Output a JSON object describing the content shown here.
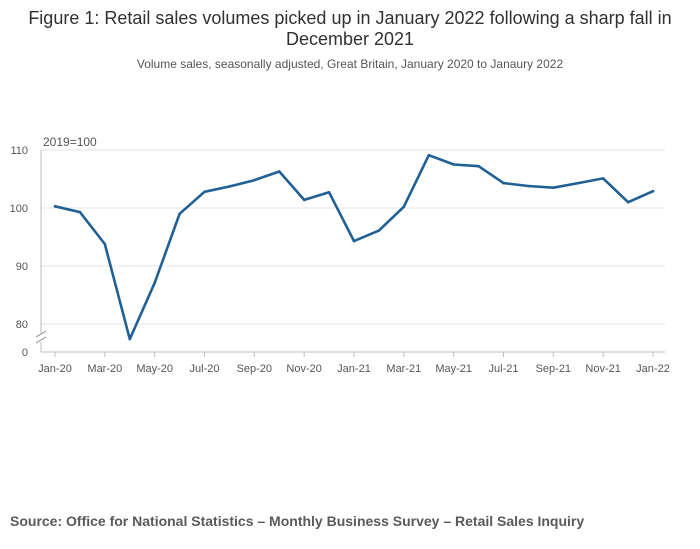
{
  "title": "Figure 1: Retail sales volumes picked up in January 2022 following a sharp fall in December 2021",
  "subtitle": "Volume sales, seasonally adjusted, Great Britain, January 2020 to Janaury 2022",
  "source": "Source: Office for National Statistics – Monthly Business Survey – Retail Sales Inquiry",
  "chart_data": {
    "type": "line",
    "y_unit_label": "2019=100",
    "y_ticks": [
      "110",
      "100",
      "90",
      "80",
      "0"
    ],
    "ylim": [
      75,
      110
    ],
    "axis_break": true,
    "x_tick_labels": [
      "Jan-20",
      "Mar-20",
      "May-20",
      "Jul-20",
      "Sep-20",
      "Nov-20",
      "Jan-21",
      "Mar-21",
      "May-21",
      "Jul-21",
      "Sep-21",
      "Nov-21",
      "Jan-22"
    ],
    "categories": [
      "Jan-20",
      "Feb-20",
      "Mar-20",
      "Apr-20",
      "May-20",
      "Jun-20",
      "Jul-20",
      "Aug-20",
      "Sep-20",
      "Oct-20",
      "Nov-20",
      "Dec-20",
      "Jan-21",
      "Feb-21",
      "Mar-21",
      "Apr-21",
      "May-21",
      "Jun-21",
      "Jul-21",
      "Aug-21",
      "Sep-21",
      "Oct-21",
      "Nov-21",
      "Dec-21",
      "Jan-22"
    ],
    "series": [
      {
        "name": "Volume sales",
        "color": "#206095",
        "values": [
          100.3,
          99.3,
          93.8,
          77.4,
          87.1,
          99.0,
          102.8,
          103.7,
          104.8,
          106.3,
          101.4,
          102.7,
          94.3,
          96.1,
          100.2,
          109.1,
          107.5,
          107.2,
          104.3,
          103.8,
          103.5,
          104.3,
          105.1,
          101.0,
          102.9
        ]
      }
    ]
  }
}
